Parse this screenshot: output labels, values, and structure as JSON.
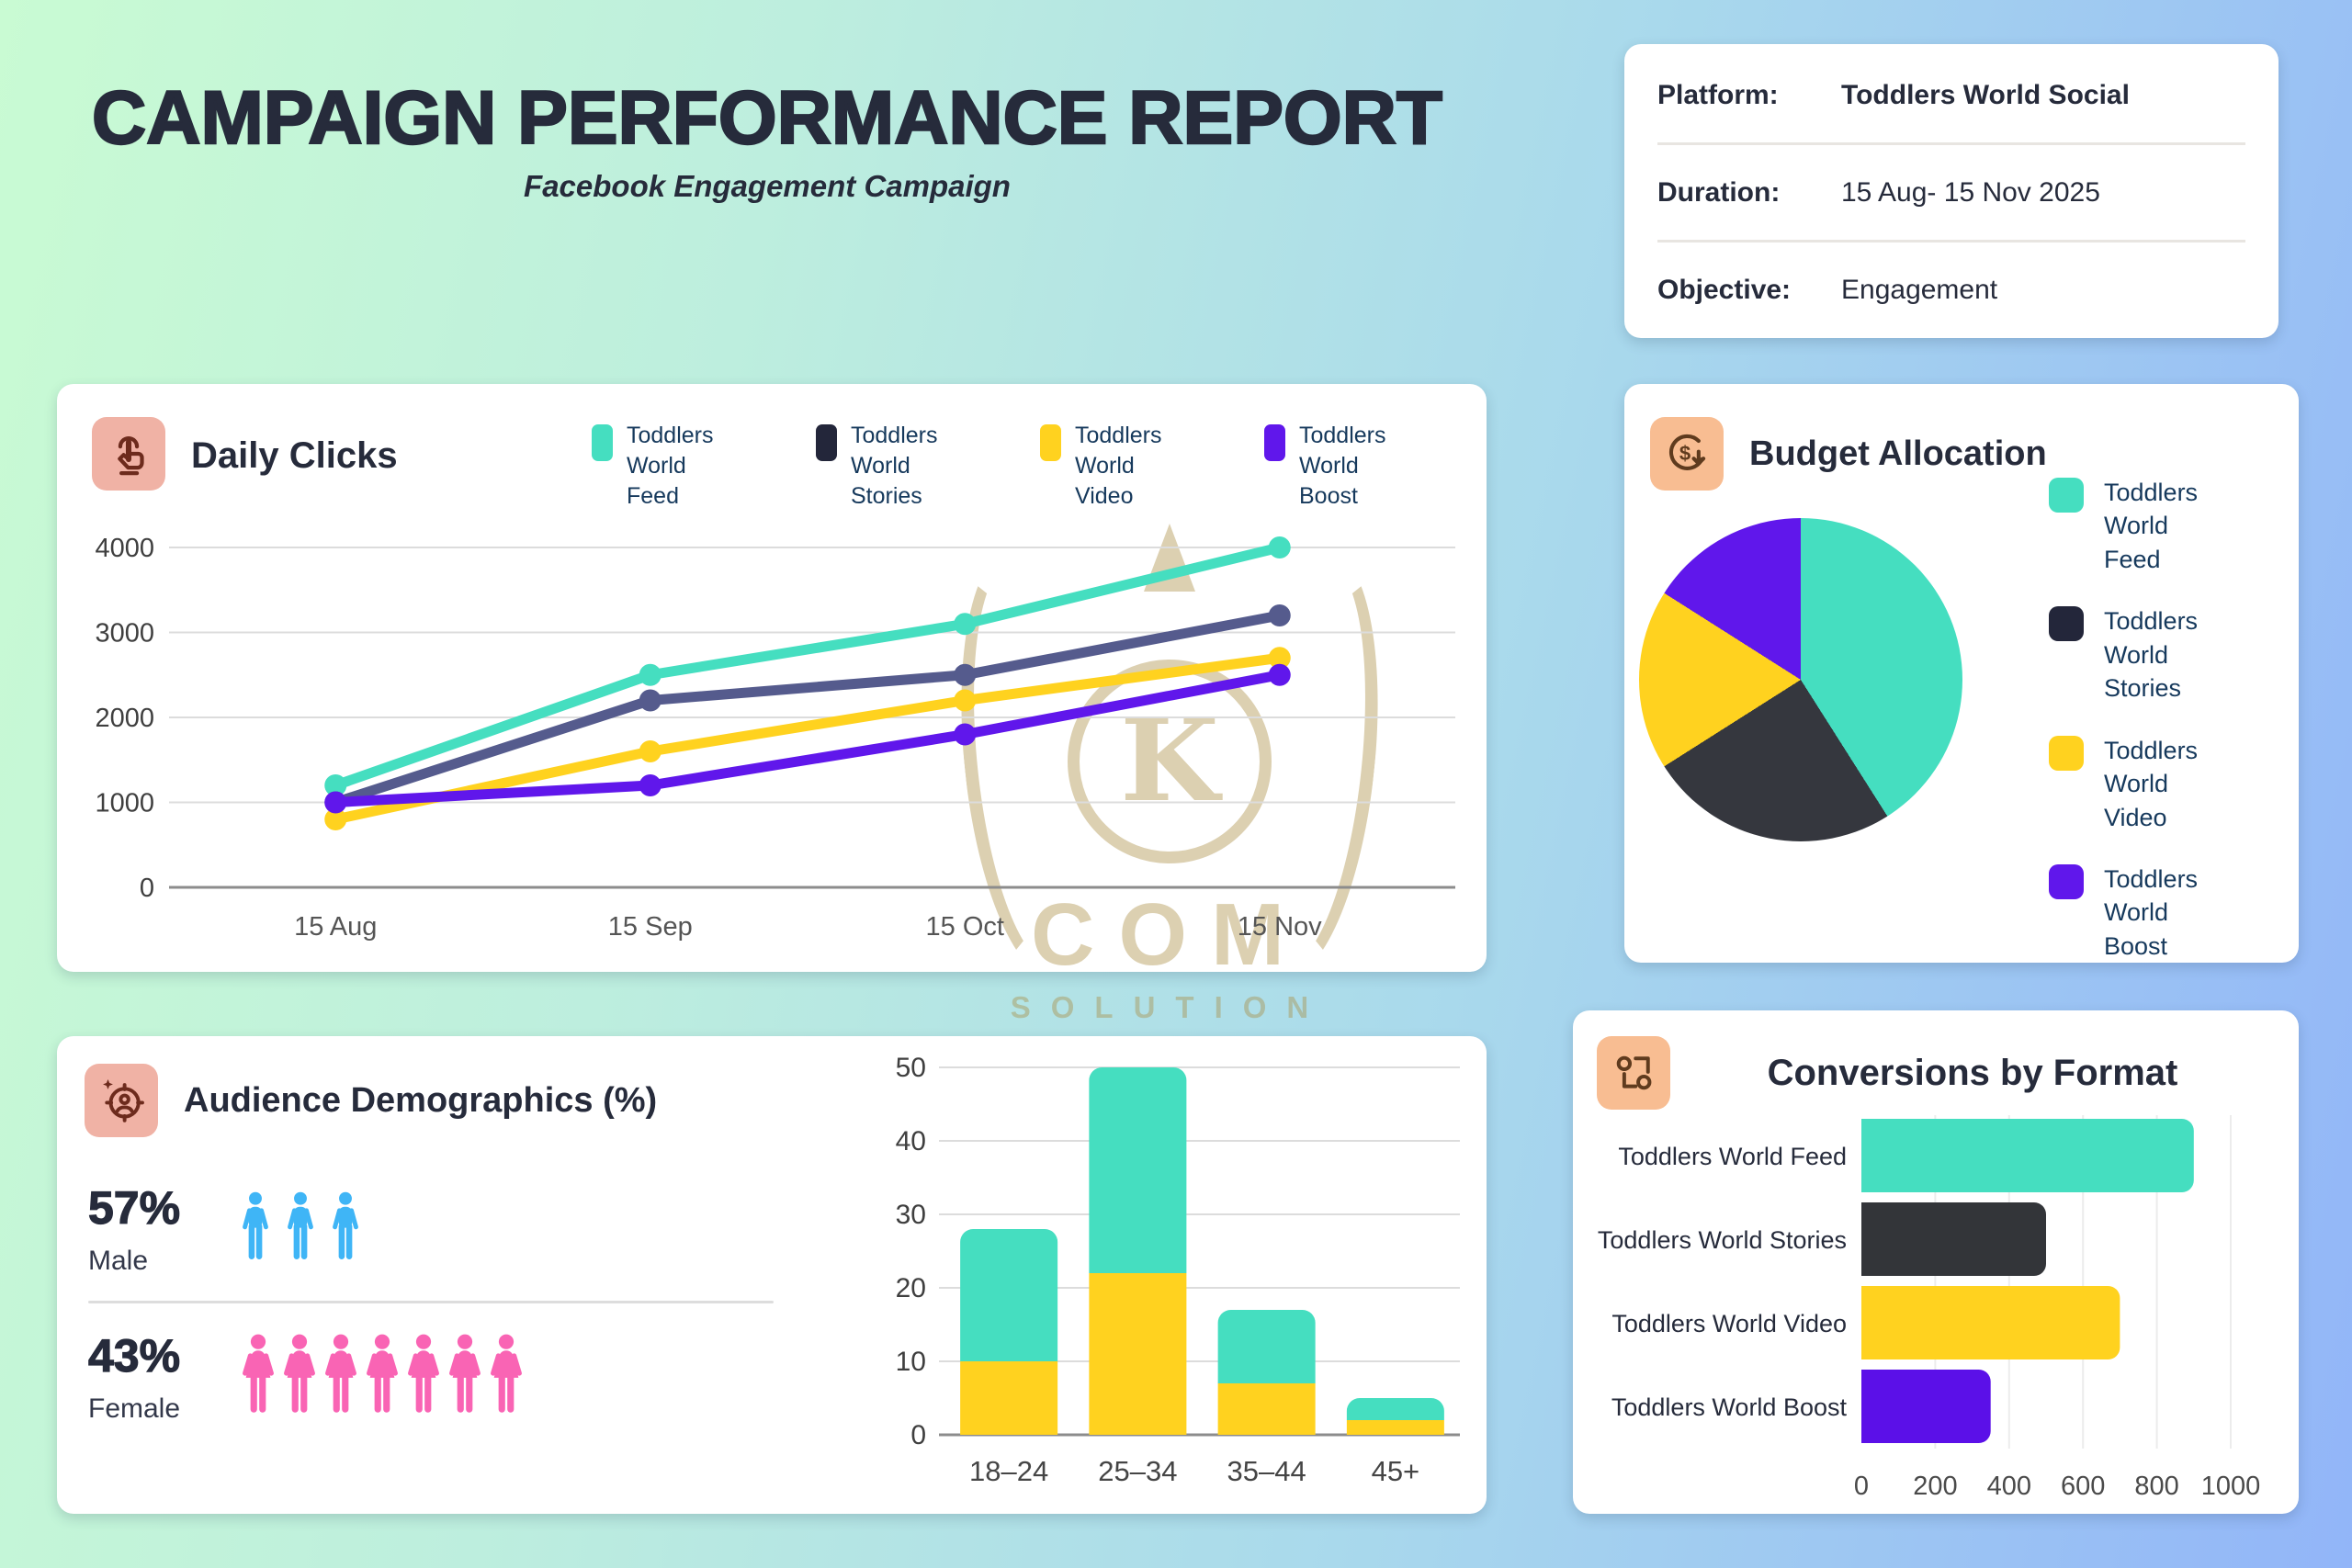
{
  "page": {
    "title": "CAMPAIGN PERFORMANCE REPORT",
    "subtitle": "Facebook Engagement Campaign"
  },
  "info_card": {
    "rows": [
      {
        "label": "Platform:",
        "value": "Toddlers World Social",
        "bold": true
      },
      {
        "label": "Duration:",
        "value": "15 Aug- 15 Nov 2025",
        "bold": false
      },
      {
        "label": "Objective:",
        "value": "Engagement",
        "bold": false
      }
    ]
  },
  "cards": {
    "daily_clicks": {
      "title": "Daily Clicks",
      "icon": "tap-click-icon"
    },
    "budget": {
      "title": "Budget Allocation",
      "icon": "dollar-cycle-icon"
    },
    "demographics": {
      "title": "Audience Demographics (%)",
      "icon": "audience-target-icon"
    },
    "conversions": {
      "title": "Conversions by Format",
      "icon": "flow-nodes-icon"
    }
  },
  "demographics": {
    "male_pct": "57%",
    "male_label": "Male",
    "male_icon_count": 3,
    "female_pct": "43%",
    "female_label": "Female",
    "female_icon_count": 7,
    "male_color": "#3fb5f6",
    "female_color": "#f964b4"
  },
  "watermark": {
    "letter": "K",
    "line1": "COM",
    "line2": "SOLUTION",
    "color": "#a98b3f"
  },
  "colors": {
    "background_gradient": [
      "#c9fbd3",
      "#a9d9ec",
      "#92b5f8"
    ],
    "card": "#ffffff",
    "heading_text": "#262b3b",
    "legend_text": "#16395c",
    "tick_text": "#3f3f3f",
    "grid_line": "#dcdcdc",
    "axis_line": "#8c8c8c",
    "icon_bg_salmon": "#f0b2a5",
    "icon_bg_peach": "#f8bd92",
    "icon_stroke": "#6d2b1d",
    "feed_teal": "#45dec0",
    "stories_dark": "#23263a",
    "stories_line": "#555b8d",
    "video_yellow": "#ffd21f",
    "boost_purple": "#6017eb"
  },
  "chart_data": [
    {
      "id": "daily_clicks",
      "type": "line",
      "title": "Daily Clicks",
      "x": [
        "15 Aug",
        "15 Sep",
        "15 Oct",
        "15 Nov"
      ],
      "series": [
        {
          "name": "Toddlers World Feed",
          "color": "#45dec0",
          "swatch": "#45dec0",
          "values": [
            1200,
            2500,
            3100,
            4000
          ]
        },
        {
          "name": "Toddlers World Stories",
          "color": "#555b8d",
          "swatch": "#23263a",
          "values": [
            1000,
            2200,
            2500,
            3200
          ]
        },
        {
          "name": "Toddlers World Video",
          "color": "#ffd21f",
          "swatch": "#ffd21f",
          "values": [
            800,
            1600,
            2200,
            2700
          ]
        },
        {
          "name": "Toddlers World Boost",
          "color": "#6017eb",
          "swatch": "#6017eb",
          "values": [
            1000,
            1200,
            1800,
            2500
          ]
        }
      ],
      "ylim": [
        0,
        4000
      ],
      "ytick_step": 1000,
      "grid": true,
      "legend_position": "top-right"
    },
    {
      "id": "budget_allocation",
      "type": "pie",
      "title": "Budget Allocation",
      "labels": [
        "Toddlers World Feed",
        "Toddlers World Stories",
        "Toddlers World Video",
        "Toddlers World Boost"
      ],
      "values_pct": [
        41,
        25,
        18,
        16
      ],
      "colors": [
        "#45dec0",
        "#35373e",
        "#ffd21f",
        "#6017eb"
      ],
      "legend_position": "right"
    },
    {
      "id": "age_demographics",
      "type": "bar",
      "stacked": true,
      "categories": [
        "18–24",
        "25–34",
        "35–44",
        "45+"
      ],
      "series": [
        {
          "name": "lower-segment",
          "color": "#ffd21f",
          "values": [
            10,
            22,
            7,
            2
          ]
        },
        {
          "name": "upper-segment",
          "color": "#45dec0",
          "values": [
            18,
            28,
            10,
            3
          ]
        }
      ],
      "totals": [
        28,
        50,
        17,
        5
      ],
      "ylim": [
        0,
        50
      ],
      "ytick_step": 10,
      "grid": true
    },
    {
      "id": "conversions_by_format",
      "type": "bar",
      "orientation": "horizontal",
      "title": "Conversions by Format",
      "categories": [
        "Toddlers World Feed",
        "Toddlers World Stories",
        "Toddlers World Video",
        "Toddlers World Boost"
      ],
      "values": [
        900,
        500,
        700,
        350
      ],
      "colors": [
        "#45dec0",
        "#333539",
        "#ffd21f",
        "#5b10e8"
      ],
      "xlim": [
        0,
        1000
      ],
      "xtick_step": 200,
      "grid": true
    }
  ]
}
